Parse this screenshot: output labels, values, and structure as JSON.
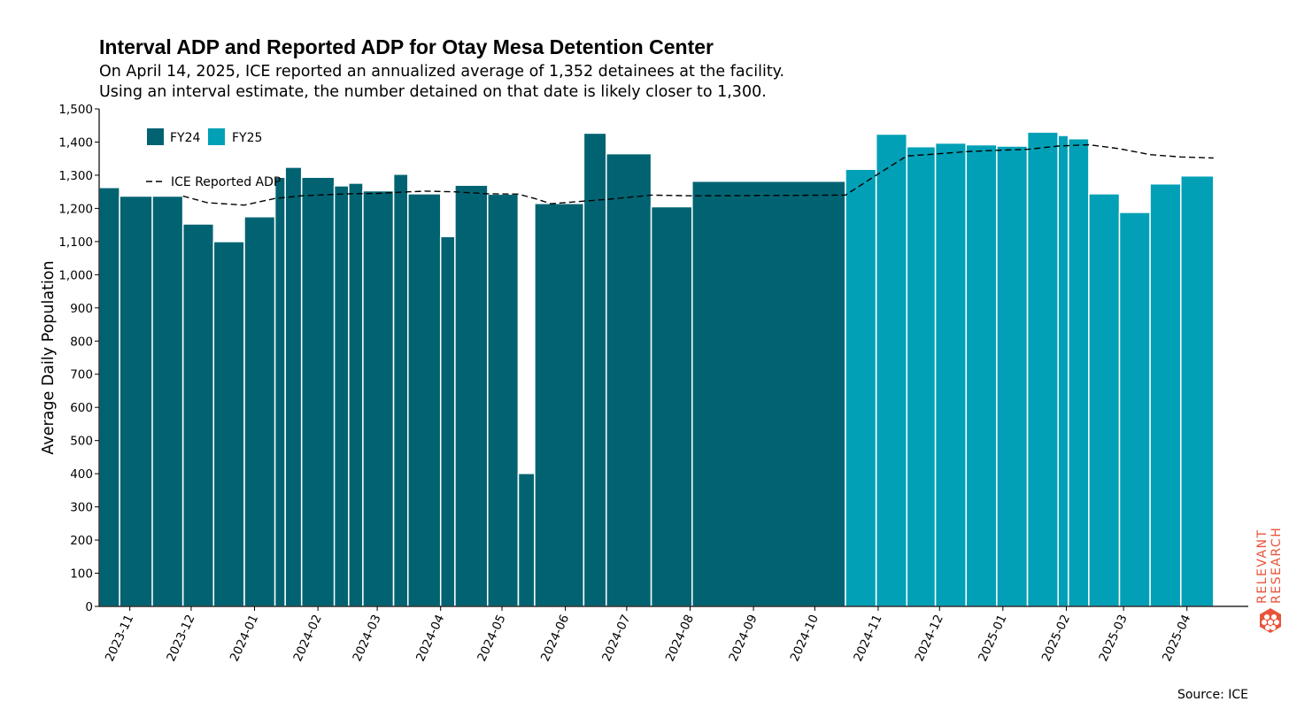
{
  "chart_data": {
    "type": "bar",
    "title": "Interval ADP and Reported ADP for Otay Mesa Detention Center",
    "subtitle": [
      "On April 14, 2025, ICE reported an annualized average of 1,352 detainees at the facility.",
      "Using an interval estimate, the number detained on that date is likely closer to 1,300."
    ],
    "ylabel": "Average Daily Population",
    "ylim": [
      0,
      1500
    ],
    "yticks": [
      0,
      100,
      200,
      300,
      400,
      500,
      600,
      700,
      800,
      900,
      1000,
      1100,
      1200,
      1300,
      1400,
      1500
    ],
    "ytick_labels": [
      "0",
      "100",
      "200",
      "300",
      "400",
      "500",
      "600",
      "700",
      "800",
      "900",
      "1,000",
      "1,100",
      "1,200",
      "1,300",
      "1,400",
      "1,500"
    ],
    "xlim": [
      "2023-10-17",
      "2025-05-01"
    ],
    "x_ticks": [
      "2023-11-01",
      "2023-12-01",
      "2024-01-01",
      "2024-02-01",
      "2024-03-01",
      "2024-04-01",
      "2024-05-01",
      "2024-06-01",
      "2024-07-01",
      "2024-08-01",
      "2024-09-01",
      "2024-10-01",
      "2024-11-01",
      "2024-12-01",
      "2025-01-01",
      "2025-02-01",
      "2025-03-01",
      "2025-04-01"
    ],
    "x_tick_labels": [
      "2023-11",
      "2023-12",
      "2024-01",
      "2024-02",
      "2024-03",
      "2024-04",
      "2024-05",
      "2024-06",
      "2024-07",
      "2024-08",
      "2024-09",
      "2024-10",
      "2024-11",
      "2024-12",
      "2025-01",
      "2025-02",
      "2025-03",
      "2025-04"
    ],
    "series": [
      {
        "name": "FY24",
        "color": "#016372",
        "bars": [
          {
            "start": "2023-10-17",
            "end": "2023-10-27",
            "value": 1263
          },
          {
            "start": "2023-10-27",
            "end": "2023-11-12",
            "value": 1237
          },
          {
            "start": "2023-11-12",
            "end": "2023-11-27",
            "value": 1237
          },
          {
            "start": "2023-11-27",
            "end": "2023-12-12",
            "value": 1153
          },
          {
            "start": "2023-12-12",
            "end": "2023-12-27",
            "value": 1100
          },
          {
            "start": "2023-12-27",
            "end": "2024-01-11",
            "value": 1175
          },
          {
            "start": "2024-01-11",
            "end": "2024-01-16",
            "value": 1294
          },
          {
            "start": "2024-01-16",
            "end": "2024-01-24",
            "value": 1324
          },
          {
            "start": "2024-01-24",
            "end": "2024-02-09",
            "value": 1294
          },
          {
            "start": "2024-02-09",
            "end": "2024-02-16",
            "value": 1268
          },
          {
            "start": "2024-02-16",
            "end": "2024-02-23",
            "value": 1276
          },
          {
            "start": "2024-02-23",
            "end": "2024-03-09",
            "value": 1253
          },
          {
            "start": "2024-03-09",
            "end": "2024-03-16",
            "value": 1303
          },
          {
            "start": "2024-03-16",
            "end": "2024-04-01",
            "value": 1244
          },
          {
            "start": "2024-04-01",
            "end": "2024-04-08",
            "value": 1115
          },
          {
            "start": "2024-04-08",
            "end": "2024-04-24",
            "value": 1270
          },
          {
            "start": "2024-04-24",
            "end": "2024-05-09",
            "value": 1243
          },
          {
            "start": "2024-05-09",
            "end": "2024-05-17",
            "value": 401
          },
          {
            "start": "2024-05-17",
            "end": "2024-06-10",
            "value": 1215
          },
          {
            "start": "2024-06-10",
            "end": "2024-06-21",
            "value": 1427
          },
          {
            "start": "2024-06-21",
            "end": "2024-07-13",
            "value": 1365
          },
          {
            "start": "2024-07-13",
            "end": "2024-08-02",
            "value": 1205
          },
          {
            "start": "2024-08-02",
            "end": "2024-10-16",
            "value": 1282
          }
        ]
      },
      {
        "name": "FY25",
        "color": "#01a0b6",
        "bars": [
          {
            "start": "2024-10-16",
            "end": "2024-10-31",
            "value": 1318
          },
          {
            "start": "2024-10-31",
            "end": "2024-11-15",
            "value": 1424
          },
          {
            "start": "2024-11-15",
            "end": "2024-11-29",
            "value": 1386
          },
          {
            "start": "2024-11-29",
            "end": "2024-12-14",
            "value": 1397
          },
          {
            "start": "2024-12-14",
            "end": "2024-12-29",
            "value": 1392
          },
          {
            "start": "2024-12-29",
            "end": "2025-01-13",
            "value": 1388
          },
          {
            "start": "2025-01-13",
            "end": "2025-01-28",
            "value": 1430
          },
          {
            "start": "2025-01-28",
            "end": "2025-02-02",
            "value": 1420
          },
          {
            "start": "2025-02-02",
            "end": "2025-02-12",
            "value": 1410
          },
          {
            "start": "2025-02-12",
            "end": "2025-02-27",
            "value": 1244
          },
          {
            "start": "2025-02-27",
            "end": "2025-03-14",
            "value": 1188
          },
          {
            "start": "2025-03-14",
            "end": "2025-03-29",
            "value": 1274
          },
          {
            "start": "2025-03-29",
            "end": "2025-04-14",
            "value": 1298
          }
        ]
      }
    ],
    "reported_adp": {
      "name": "ICE Reported ADP",
      "style": "dashed",
      "color": "#000000",
      "points": [
        {
          "x": "2023-11-27",
          "y": 1237
        },
        {
          "x": "2023-12-09",
          "y": 1217
        },
        {
          "x": "2023-12-27",
          "y": 1210
        },
        {
          "x": "2024-01-11",
          "y": 1230
        },
        {
          "x": "2024-01-24",
          "y": 1238
        },
        {
          "x": "2024-02-16",
          "y": 1244
        },
        {
          "x": "2024-03-01",
          "y": 1245
        },
        {
          "x": "2024-03-16",
          "y": 1250
        },
        {
          "x": "2024-03-25",
          "y": 1252
        },
        {
          "x": "2024-04-08",
          "y": 1250
        },
        {
          "x": "2024-04-24",
          "y": 1244
        },
        {
          "x": "2024-05-09",
          "y": 1243
        },
        {
          "x": "2024-05-17",
          "y": 1230
        },
        {
          "x": "2024-05-25",
          "y": 1214
        },
        {
          "x": "2024-06-10",
          "y": 1222
        },
        {
          "x": "2024-06-21",
          "y": 1227
        },
        {
          "x": "2024-07-13",
          "y": 1240
        },
        {
          "x": "2024-08-02",
          "y": 1238
        },
        {
          "x": "2024-10-16",
          "y": 1240
        },
        {
          "x": "2024-10-31",
          "y": 1300
        },
        {
          "x": "2024-11-15",
          "y": 1358
        },
        {
          "x": "2024-11-29",
          "y": 1364
        },
        {
          "x": "2024-12-14",
          "y": 1371
        },
        {
          "x": "2024-12-29",
          "y": 1375
        },
        {
          "x": "2025-01-13",
          "y": 1378
        },
        {
          "x": "2025-01-28",
          "y": 1388
        },
        {
          "x": "2025-02-12",
          "y": 1392
        },
        {
          "x": "2025-02-27",
          "y": 1380
        },
        {
          "x": "2025-03-14",
          "y": 1362
        },
        {
          "x": "2025-03-29",
          "y": 1355
        },
        {
          "x": "2025-04-14",
          "y": 1352
        }
      ]
    },
    "legend": {
      "placement": "top-left",
      "entries": [
        "FY24",
        "FY25",
        "ICE Reported ADP"
      ]
    },
    "grid": false
  },
  "source": "Source: ICE",
  "logo": {
    "name": "relevant-research-logo",
    "line1": "RELEVANT",
    "line2": "RESEARCH",
    "color": "#e8553a"
  }
}
